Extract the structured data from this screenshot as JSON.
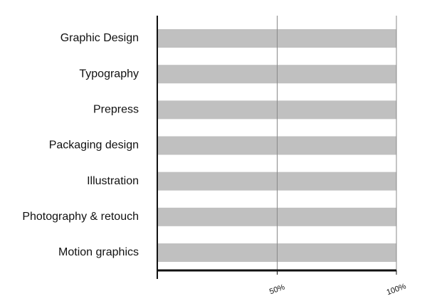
{
  "chart_data": {
    "type": "bar",
    "orientation": "horizontal",
    "categories": [
      "Graphic Design",
      "Typography",
      "Prepress",
      "Packaging design",
      "Illustration",
      "Photography & retouch",
      "Motion graphics"
    ],
    "values": [
      100,
      100,
      100,
      100,
      100,
      100,
      100
    ],
    "color": "#c0c0c0",
    "xlim": [
      0,
      100
    ],
    "xticks": [
      {
        "value": 50,
        "label": "50%"
      },
      {
        "value": 100,
        "label": "100%"
      }
    ],
    "grid": true
  }
}
